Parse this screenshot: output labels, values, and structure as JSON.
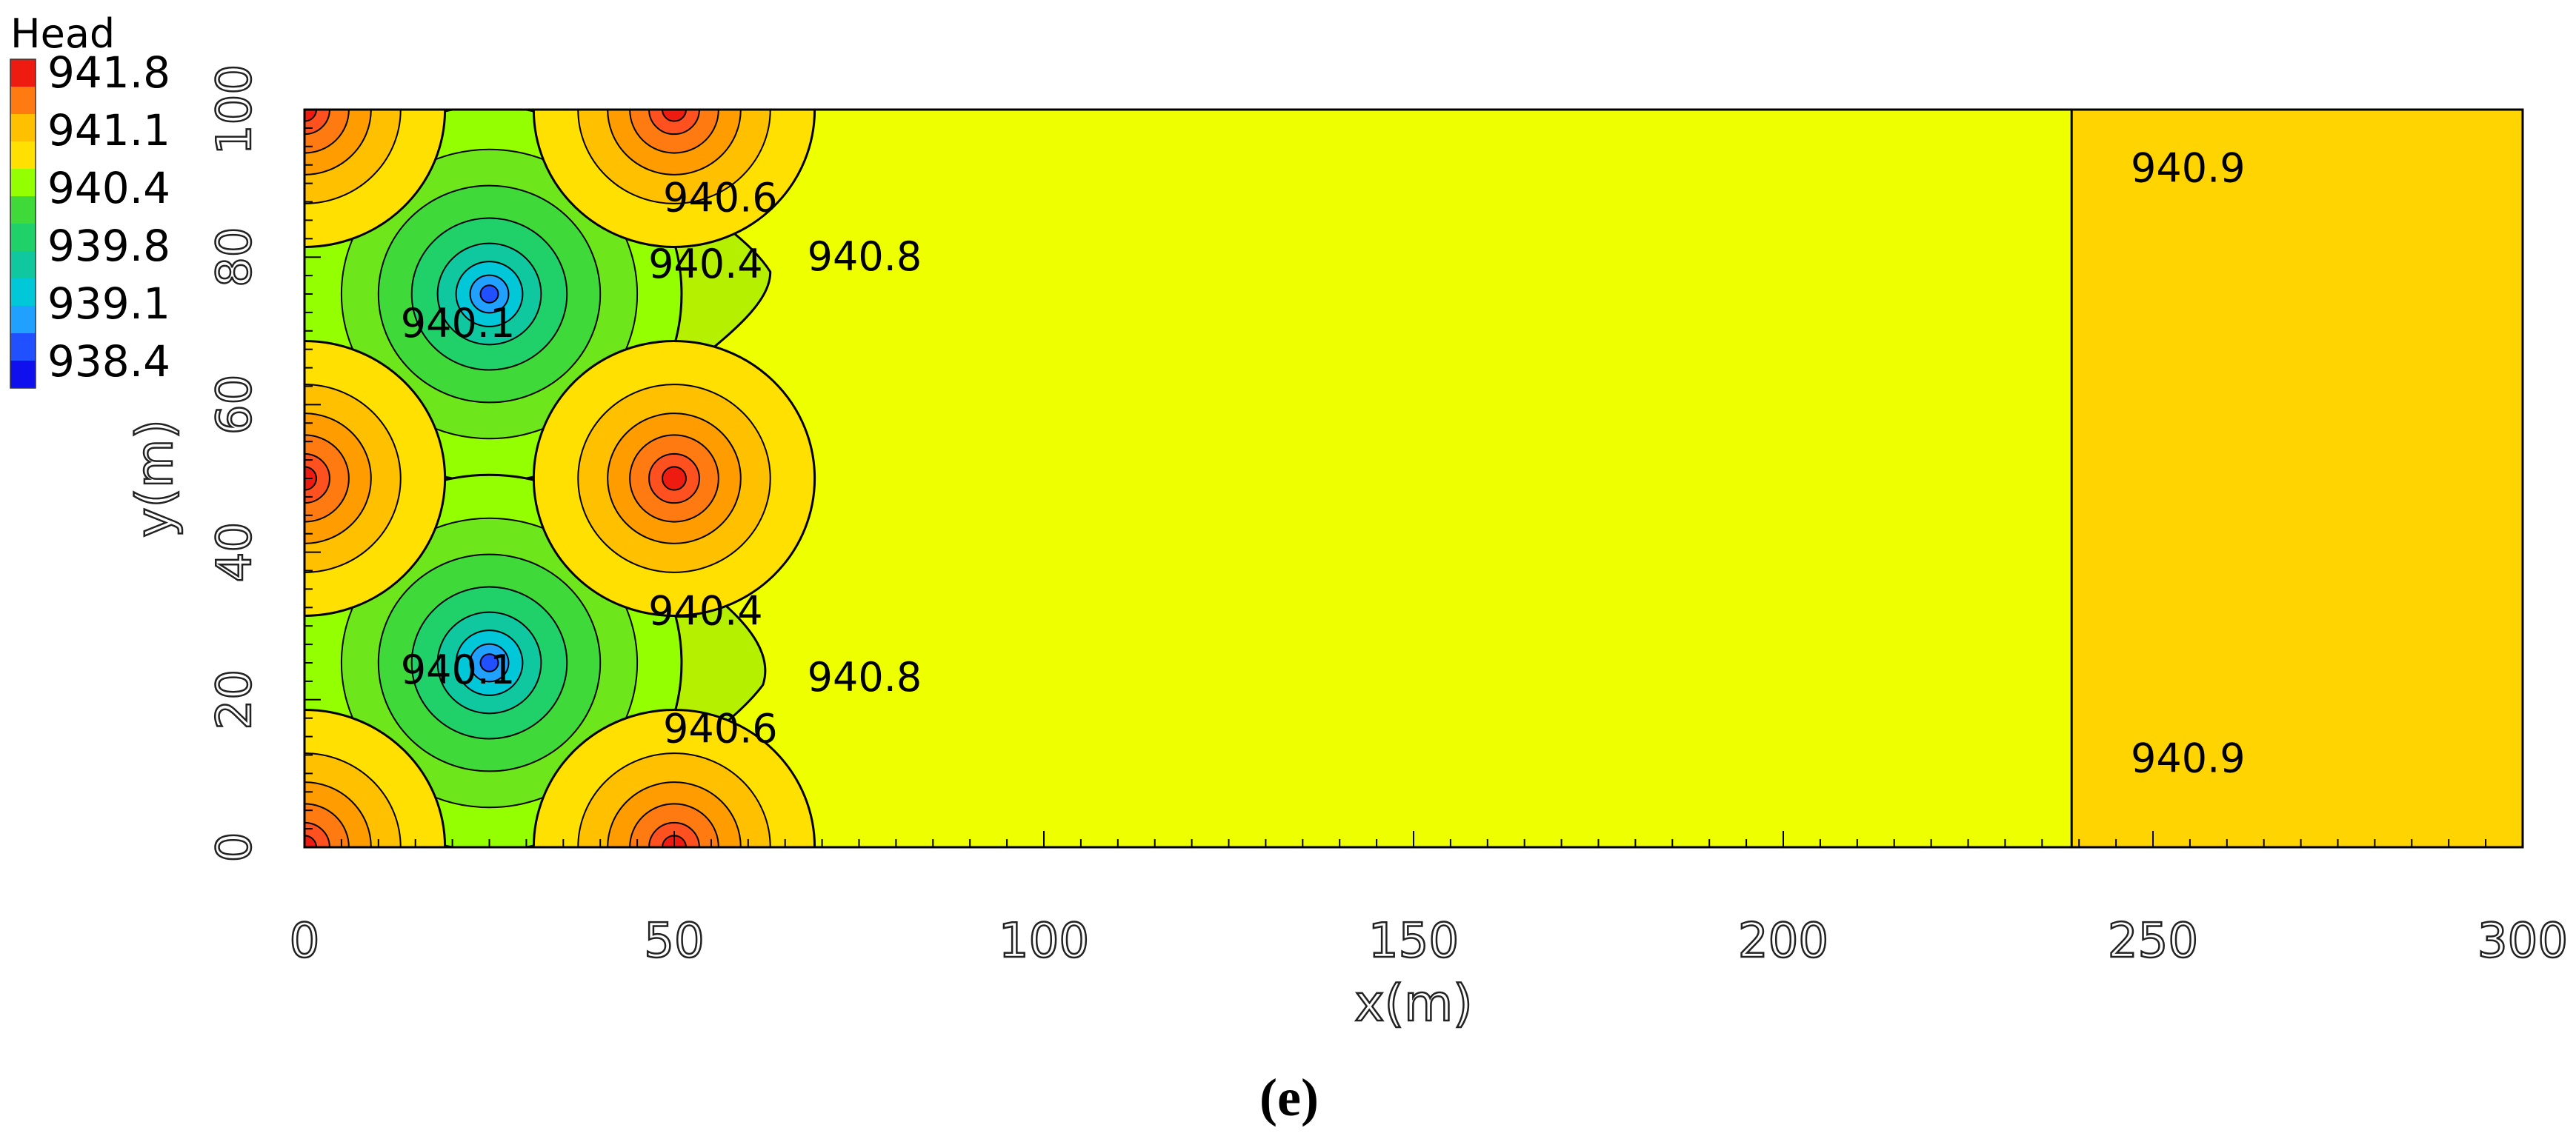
{
  "chart_data": {
    "type": "contour",
    "xlabel": "x(m)",
    "ylabel": "y(m)",
    "xlim": [
      0,
      300
    ],
    "ylim": [
      0,
      100
    ],
    "xticks": [
      "0",
      "50",
      "100",
      "150",
      "200",
      "250",
      "300"
    ],
    "yticks": [
      "0",
      "20",
      "40",
      "60",
      "80",
      "100"
    ],
    "caption": "(e)",
    "legend": {
      "title": "Head",
      "placement": "top-left",
      "entries": [
        "941.8",
        "941.1",
        "940.4",
        "939.8",
        "939.1",
        "938.4"
      ]
    },
    "constant_head_boundary_x": 239,
    "background_zones": [
      {
        "x_range": [
          0,
          239
        ],
        "head": 940.8,
        "color": "#eeff00"
      },
      {
        "x_range": [
          239,
          300
        ],
        "head": 940.9,
        "color": "#ffd400"
      }
    ],
    "wells": [
      {
        "x": 25,
        "y": 75,
        "type": "pumping",
        "min_head": 938.4
      },
      {
        "x": 25,
        "y": 25,
        "type": "pumping",
        "min_head": 938.4
      },
      {
        "x": 50,
        "y": 100,
        "type": "injection",
        "max_head": 941.8
      },
      {
        "x": 50,
        "y": 50,
        "type": "injection",
        "max_head": 941.8
      },
      {
        "x": 50,
        "y": 0,
        "type": "injection",
        "max_head": 941.8
      },
      {
        "x": 0,
        "y": 100,
        "type": "injection",
        "max_head": 941.8
      },
      {
        "x": 0,
        "y": 50,
        "type": "injection",
        "max_head": 941.8
      },
      {
        "x": 0,
        "y": 0,
        "type": "injection",
        "max_head": 941.8
      }
    ],
    "contour_labels": [
      {
        "text": "940.6",
        "x": 48.5,
        "y": 88
      },
      {
        "text": "940.4",
        "x": 46.5,
        "y": 79
      },
      {
        "text": "940.8",
        "x": 68,
        "y": 80
      },
      {
        "text": "940.1",
        "x": 13,
        "y": 71
      },
      {
        "text": "940.4",
        "x": 46.5,
        "y": 32
      },
      {
        "text": "940.8",
        "x": 68,
        "y": 23
      },
      {
        "text": "940.1",
        "x": 13,
        "y": 24
      },
      {
        "text": "940.6",
        "x": 48.5,
        "y": 16
      },
      {
        "text": "940.9",
        "x": 247,
        "y": 92
      },
      {
        "text": "940.9",
        "x": 247,
        "y": 12
      }
    ]
  }
}
